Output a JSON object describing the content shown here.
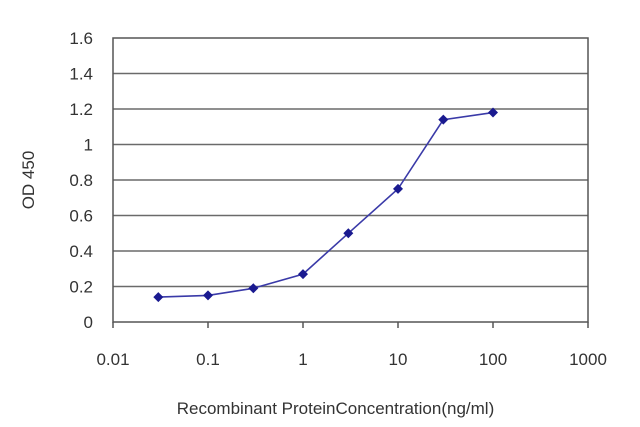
{
  "chart_data": {
    "type": "line",
    "title": "",
    "xlabel": "Recombinant ProteinConcentration(ng/ml)",
    "ylabel": "OD 450",
    "x_scale": "log",
    "xlim": [
      0.01,
      1000
    ],
    "ylim": [
      0,
      1.6
    ],
    "x_ticks": [
      0.01,
      0.1,
      1,
      10,
      100,
      1000
    ],
    "x_tick_labels": [
      "0.01",
      "0.1",
      "1",
      "10",
      "100",
      "1000"
    ],
    "y_ticks": [
      0,
      0.2,
      0.4,
      0.6,
      0.8,
      1,
      1.2,
      1.4,
      1.6
    ],
    "y_tick_labels": [
      "0",
      "0.2",
      "0.4",
      "0.6",
      "0.8",
      "1",
      "1.2",
      "1.4",
      "1.6"
    ],
    "grid": "horizontal",
    "legend": "none",
    "series": [
      {
        "x": [
          0.03,
          0.1,
          0.3,
          1,
          3,
          10,
          30,
          100
        ],
        "y": [
          0.14,
          0.15,
          0.19,
          0.27,
          0.5,
          0.75,
          1.14,
          1.18
        ],
        "color": "#3a3aa8",
        "marker_color": "#1a1a90"
      }
    ]
  }
}
